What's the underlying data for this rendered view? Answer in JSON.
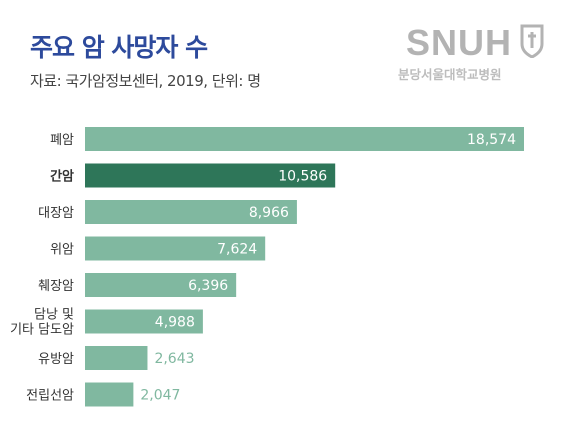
{
  "header": {
    "title": "주요 암 사망자 수",
    "source": "자료: 국가암정보센터, 2019, 단위: 명"
  },
  "logo": {
    "text": "SNUH",
    "subtext": "분당서울대학교병원",
    "icon": "snuh-emblem-icon"
  },
  "colors": {
    "bar": "#80b8a0",
    "highlight": "#2e7659",
    "inner_label": "#ffffff",
    "outer_label": "#80b8a0",
    "category_label": "#333333",
    "title": "#2d4a9c"
  },
  "chart_data": {
    "type": "bar",
    "orientation": "horizontal",
    "categories": [
      "폐암",
      "간암",
      "대장암",
      "위암",
      "췌장암",
      "담낭 및\n기타 담도암",
      "유방암",
      "전립선암"
    ],
    "values": [
      18574,
      10586,
      8966,
      7624,
      6396,
      4988,
      2643,
      2047
    ],
    "value_labels": [
      "18,574",
      "10,586",
      "8,966",
      "7,624",
      "6,396",
      "4,988",
      "2,643",
      "2,047"
    ],
    "highlight_index": 1,
    "xlim": [
      0,
      18574
    ],
    "title": "주요 암 사망자 수",
    "xlabel": "",
    "ylabel": "",
    "grid": false,
    "legend": "none"
  }
}
